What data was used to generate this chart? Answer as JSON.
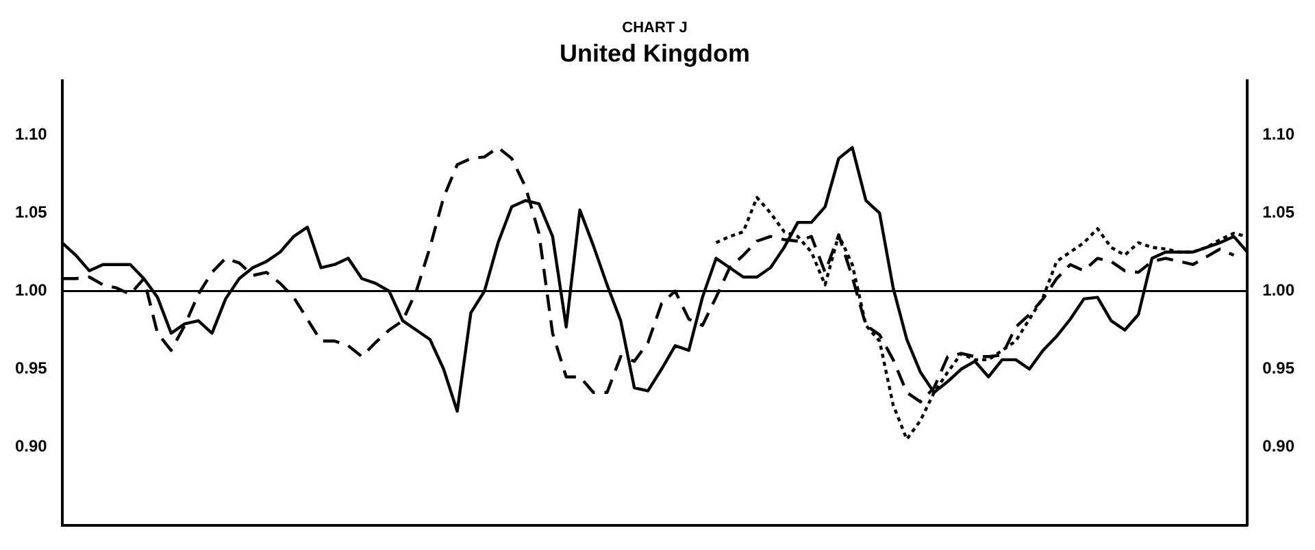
{
  "chart_data": {
    "type": "line",
    "title": "CHART J",
    "subtitle": "United Kingdom",
    "categories": [
      null,
      null,
      null,
      null,
      null,
      null,
      null,
      null,
      null,
      null,
      null,
      null,
      null,
      null,
      null,
      null,
      null,
      null,
      null,
      null,
      null,
      null,
      null,
      null,
      null,
      null,
      null,
      null,
      null,
      null,
      null,
      null,
      null,
      null,
      null,
      null,
      null,
      null,
      null,
      null,
      null,
      null,
      null,
      null,
      null,
      null,
      null,
      null,
      null,
      null,
      null,
      null,
      null,
      null,
      null,
      null,
      null,
      null,
      null,
      null,
      null,
      null,
      null,
      null,
      null,
      null,
      null,
      null,
      null,
      null,
      null,
      null,
      null,
      null,
      null,
      null,
      null,
      null,
      null,
      null,
      null,
      null,
      null,
      null,
      null,
      null,
      null,
      null
    ],
    "series": [
      {
        "color": "#000000",
        "line_style": "solid",
        "values": [
          1.031,
          1.023,
          1.013,
          1.017,
          1.017,
          1.017,
          1.008,
          0.996,
          0.973,
          0.979,
          0.981,
          0.973,
          0.995,
          1.008,
          1.015,
          1.019,
          1.025,
          1.035,
          1.041,
          1.015,
          1.017,
          1.021,
          1.008,
          1.005,
          1.0,
          0.981,
          0.975,
          0.969,
          0.95,
          0.923,
          0.986,
          1.0,
          1.031,
          1.054,
          1.058,
          1.056,
          1.035,
          0.977,
          1.052,
          1.029,
          1.004,
          0.981,
          0.938,
          0.936,
          0.95,
          0.965,
          0.962,
          0.996,
          1.021,
          1.015,
          1.009,
          1.009,
          1.015,
          1.028,
          1.044,
          1.044,
          1.054,
          1.085,
          1.092,
          1.058,
          1.05,
          1.002,
          0.969,
          0.948,
          0.935,
          0.942,
          0.95,
          0.955,
          0.945,
          0.956,
          0.956,
          0.95,
          0.962,
          0.971,
          0.982,
          0.995,
          0.996,
          0.981,
          0.975,
          0.985,
          1.021,
          1.025,
          1.025,
          1.025,
          1.028,
          1.031,
          1.035,
          1.025
        ]
      },
      {
        "color": "#000000",
        "line_style": "dashed",
        "values": [
          1.008,
          1.008,
          1.009,
          1.004,
          1.002,
          0.998,
          1.008,
          0.973,
          0.962,
          0.978,
          0.998,
          1.012,
          1.021,
          1.018,
          1.01,
          1.012,
          1.005,
          0.996,
          0.982,
          0.968,
          0.968,
          0.965,
          0.958,
          0.967,
          0.975,
          0.981,
          1.0,
          1.028,
          1.06,
          1.081,
          1.085,
          1.086,
          1.092,
          1.085,
          1.067,
          1.037,
          0.973,
          0.945,
          0.945,
          0.935,
          0.935,
          0.958,
          0.955,
          0.967,
          0.992,
          1.0,
          0.982,
          0.978,
          0.996,
          1.015,
          1.023,
          1.032,
          1.035,
          1.033,
          1.032,
          1.035,
          1.012,
          1.036,
          1.009,
          0.978,
          0.972,
          0.956,
          0.935,
          0.929,
          0.938,
          0.958,
          0.96,
          0.958,
          0.958,
          0.959,
          0.977,
          0.985,
          0.995,
          1.008,
          1.017,
          1.013,
          1.021,
          1.019,
          1.013,
          1.012,
          1.019,
          1.021,
          1.019,
          1.017,
          1.022,
          1.027,
          1.023,
          null
        ]
      },
      {
        "color": "#000000",
        "line_style": "dotted",
        "values": [
          null,
          null,
          null,
          null,
          null,
          null,
          null,
          null,
          null,
          null,
          null,
          null,
          null,
          null,
          null,
          null,
          null,
          null,
          null,
          null,
          null,
          null,
          null,
          null,
          null,
          null,
          null,
          null,
          null,
          null,
          null,
          null,
          null,
          null,
          null,
          null,
          null,
          null,
          null,
          null,
          null,
          null,
          null,
          null,
          null,
          null,
          null,
          null,
          1.031,
          1.035,
          1.038,
          1.06,
          1.05,
          1.038,
          1.035,
          1.025,
          1.004,
          1.036,
          1.017,
          0.978,
          0.968,
          0.927,
          0.905,
          0.917,
          0.935,
          0.948,
          0.96,
          0.956,
          0.956,
          0.962,
          0.968,
          0.982,
          0.996,
          1.019,
          1.025,
          1.031,
          1.04,
          1.028,
          1.023,
          1.031,
          1.028,
          1.027,
          1.025,
          1.025,
          1.028,
          1.033,
          1.037,
          1.035
        ]
      }
    ],
    "ylim": [
      0.85,
      1.135
    ],
    "yticks": [
      {
        "value": 0.9,
        "label": "0.90"
      },
      {
        "value": 0.95,
        "label": "0.95"
      },
      {
        "value": 1.0,
        "label": "1.00"
      },
      {
        "value": 1.05,
        "label": "1.05"
      },
      {
        "value": 1.1,
        "label": "1.10"
      }
    ],
    "y2lim": [
      0.85,
      1.135
    ],
    "y2ticks": [
      {
        "value": 0.9,
        "label": "0.90"
      },
      {
        "value": 0.95,
        "label": "0.95"
      },
      {
        "value": 1.0,
        "label": "1.00"
      },
      {
        "value": 1.05,
        "label": "1.05"
      },
      {
        "value": 1.1,
        "label": "1.10"
      }
    ],
    "ref_lines": [
      {
        "axis": "y",
        "value": 1.0
      }
    ],
    "tick_labels": "y",
    "grid": false,
    "legend": false,
    "marker": "none"
  }
}
